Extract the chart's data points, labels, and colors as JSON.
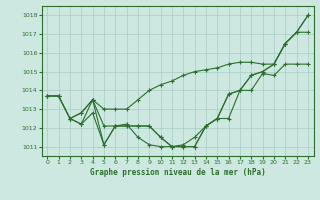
{
  "title": "Graphe pression niveau de la mer (hPa)",
  "background_color": "#cce8e0",
  "grid_color": "#a8ccc4",
  "line_color": "#2d6e2d",
  "xlim": [
    -0.5,
    23.5
  ],
  "ylim": [
    1010.5,
    1018.5
  ],
  "yticks": [
    1011,
    1012,
    1013,
    1014,
    1015,
    1016,
    1017,
    1018
  ],
  "xticks": [
    0,
    1,
    2,
    3,
    4,
    5,
    6,
    7,
    8,
    9,
    10,
    11,
    12,
    13,
    14,
    15,
    16,
    17,
    18,
    19,
    20,
    21,
    22,
    23
  ],
  "series": [
    {
      "x": [
        0,
        1,
        2,
        3,
        4,
        5,
        6,
        7,
        8,
        9,
        10,
        11,
        12,
        13,
        14,
        15,
        16,
        17,
        18,
        19,
        20,
        21,
        22,
        23
      ],
      "y": [
        1013.7,
        1013.7,
        1012.5,
        1012.8,
        1013.5,
        1013.0,
        1013.0,
        1013.0,
        1013.5,
        1014.0,
        1014.3,
        1014.5,
        1014.8,
        1015.0,
        1015.1,
        1015.2,
        1015.4,
        1015.5,
        1015.5,
        1015.4,
        1015.4,
        1016.5,
        1017.1,
        1017.1
      ]
    },
    {
      "x": [
        0,
        1,
        2,
        3,
        4,
        5,
        6,
        7,
        8,
        9,
        10,
        11,
        12,
        13,
        14,
        15,
        16,
        17,
        18,
        19,
        20,
        21,
        22,
        23
      ],
      "y": [
        1013.7,
        1013.7,
        1012.5,
        1012.8,
        1013.5,
        1012.1,
        1012.1,
        1012.1,
        1012.1,
        1012.1,
        1011.5,
        1011.0,
        1011.0,
        1011.0,
        1012.1,
        1012.5,
        1013.8,
        1014.0,
        1014.8,
        1015.0,
        1015.4,
        1016.5,
        1017.1,
        1018.0
      ]
    },
    {
      "x": [
        0,
        1,
        2,
        3,
        4,
        5,
        6,
        7,
        8,
        9,
        10,
        11,
        12,
        13,
        14,
        15,
        16,
        17,
        18,
        19,
        20,
        21,
        22,
        23
      ],
      "y": [
        1013.7,
        1013.7,
        1012.5,
        1012.2,
        1012.8,
        1011.1,
        1012.1,
        1012.2,
        1011.5,
        1011.1,
        1011.0,
        1011.0,
        1011.1,
        1011.5,
        1012.1,
        1012.5,
        1012.5,
        1014.0,
        1014.0,
        1014.9,
        1014.8,
        1015.4,
        1015.4,
        1015.4
      ]
    },
    {
      "x": [
        2,
        3,
        4,
        5,
        6,
        7,
        8,
        9,
        10,
        11,
        12,
        13,
        14,
        15,
        16,
        17,
        18,
        19,
        20,
        21,
        22,
        23
      ],
      "y": [
        1012.5,
        1012.2,
        1013.5,
        1011.1,
        1012.1,
        1012.1,
        1012.1,
        1012.1,
        1011.5,
        1011.0,
        1011.0,
        1011.0,
        1012.1,
        1012.5,
        1013.8,
        1014.0,
        1014.8,
        1015.0,
        1015.4,
        1016.5,
        1017.1,
        1018.0
      ]
    }
  ]
}
